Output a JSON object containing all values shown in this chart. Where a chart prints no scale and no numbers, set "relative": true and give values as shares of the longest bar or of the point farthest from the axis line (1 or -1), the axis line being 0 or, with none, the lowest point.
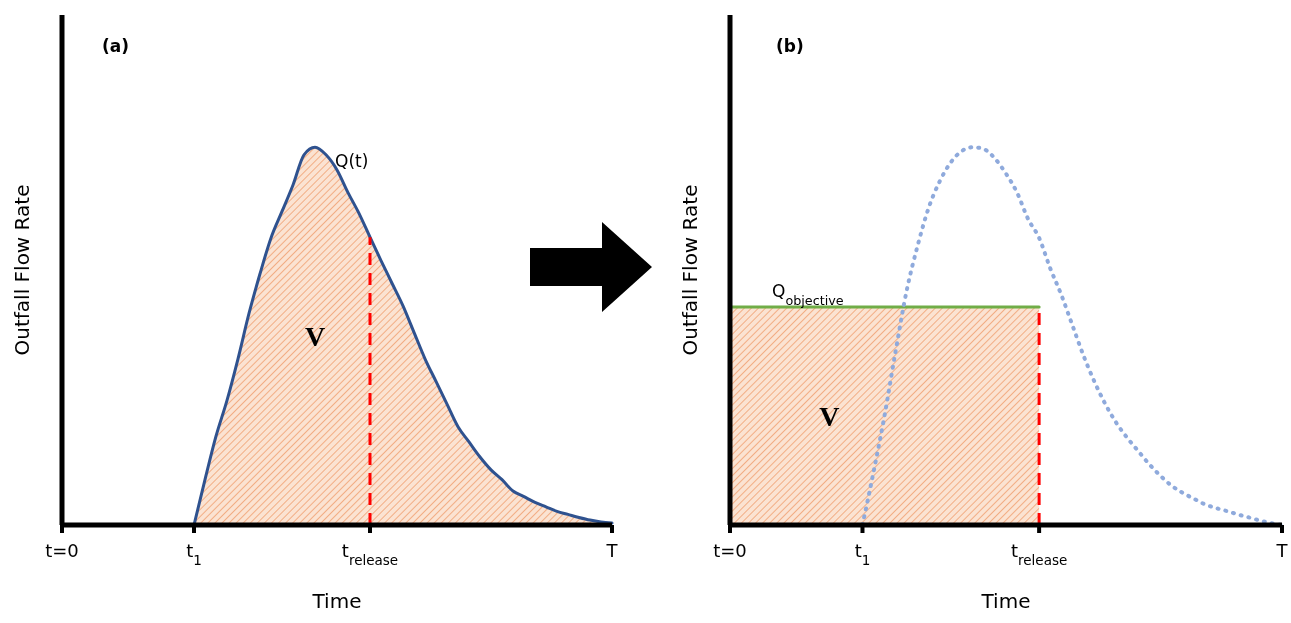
{
  "chart_data": [
    {
      "type": "area",
      "title": "(a)",
      "xlabel": "Time",
      "ylabel": "Outfall Flow Rate",
      "relative": true,
      "marker": "none",
      "annotations": [
        "V"
      ],
      "categories": [
        "t=0",
        null,
        null,
        null,
        null,
        null,
        null,
        null,
        null,
        null,
        null,
        null,
        "t$_{1}$",
        null,
        null,
        null,
        null,
        null,
        null,
        null,
        null,
        null,
        null,
        null,
        null,
        null,
        null,
        null,
        "t$_{release}$",
        null,
        null,
        null,
        null,
        null,
        null,
        null,
        null,
        null,
        null,
        null,
        null,
        null,
        null,
        null,
        null,
        null,
        null,
        null,
        null,
        null,
        "T"
      ],
      "ref_lines": [
        {
          "axis": "x",
          "value": "t$_{release}$",
          "label": null,
          "color": "#ff0000",
          "line_style": "dashed"
        }
      ],
      "series": [
        {
          "name": "Q(t)",
          "color": "#2f528f",
          "line_style": "solid",
          "values": [
            null,
            null,
            null,
            null,
            null,
            null,
            null,
            null,
            null,
            null,
            null,
            null,
            0,
            0.12,
            0.235,
            0.33,
            0.44,
            0.56,
            0.665,
            0.76,
            0.83,
            0.9,
            0.98,
            1,
            0.98,
            0.94,
            0.88,
            0.825,
            0.762,
            0.7,
            0.64,
            0.58,
            0.51,
            0.44,
            0.38,
            0.32,
            0.26,
            0.22,
            0.18,
            0.146,
            0.12,
            0.09,
            0.075,
            0.06,
            0.048,
            0.036,
            0.028,
            0.02,
            0.013,
            0.008,
            0.005
          ]
        }
      ]
    },
    {
      "type": "area",
      "title": "(b)",
      "xlabel": "Time",
      "ylabel": "Outfall Flow Rate",
      "relative": true,
      "marker": "none",
      "annotations": [
        "V"
      ],
      "categories": [
        "t=0",
        null,
        null,
        null,
        null,
        null,
        null,
        null,
        null,
        null,
        null,
        null,
        "t$_{1}$",
        null,
        null,
        null,
        null,
        null,
        null,
        null,
        null,
        null,
        null,
        null,
        null,
        null,
        null,
        null,
        "t$_{release}$",
        null,
        null,
        null,
        null,
        null,
        null,
        null,
        null,
        null,
        null,
        null,
        null,
        null,
        null,
        null,
        null,
        null,
        null,
        null,
        null,
        null,
        "T"
      ],
      "ref_lines": [
        {
          "axis": "x",
          "value": "t$_{release}$",
          "label": null,
          "color": "#ff0000",
          "line_style": "dashed"
        }
      ],
      "series": [
        {
          "type": "line",
          "color": "#8faadc",
          "line_style": "dotted",
          "values": [
            null,
            null,
            null,
            null,
            null,
            null,
            null,
            null,
            null,
            null,
            null,
            null,
            0,
            0.14,
            0.29,
            0.46,
            0.62,
            0.74,
            0.84,
            0.91,
            0.96,
            0.99,
            1,
            0.995,
            0.97,
            0.93,
            0.88,
            0.81,
            0.76,
            0.68,
            0.61,
            0.53,
            0.45,
            0.38,
            0.32,
            0.27,
            0.23,
            0.195,
            0.16,
            0.13,
            0.104,
            0.085,
            0.07,
            0.055,
            0.045,
            0.037,
            0.028,
            0.02,
            0.012,
            0.005,
            0
          ]
        },
        {
          "name": "Q$_{objective}$",
          "color": "#70ad47",
          "line_style": "solid",
          "values": [
            0.577,
            0.577,
            0.577,
            0.577,
            0.577,
            0.577,
            0.577,
            0.577,
            0.577,
            0.577,
            0.577,
            0.577,
            0.577,
            0.577,
            0.577,
            0.577,
            0.577,
            0.577,
            0.577,
            0.577,
            0.577,
            0.577,
            0.577,
            0.577,
            0.577,
            0.577,
            0.577,
            0.577,
            0.577,
            null,
            null,
            null,
            null,
            null,
            null,
            null,
            null,
            null,
            null,
            null,
            null,
            null,
            null,
            null,
            null,
            null,
            null,
            null,
            null,
            null,
            null
          ]
        }
      ]
    }
  ]
}
